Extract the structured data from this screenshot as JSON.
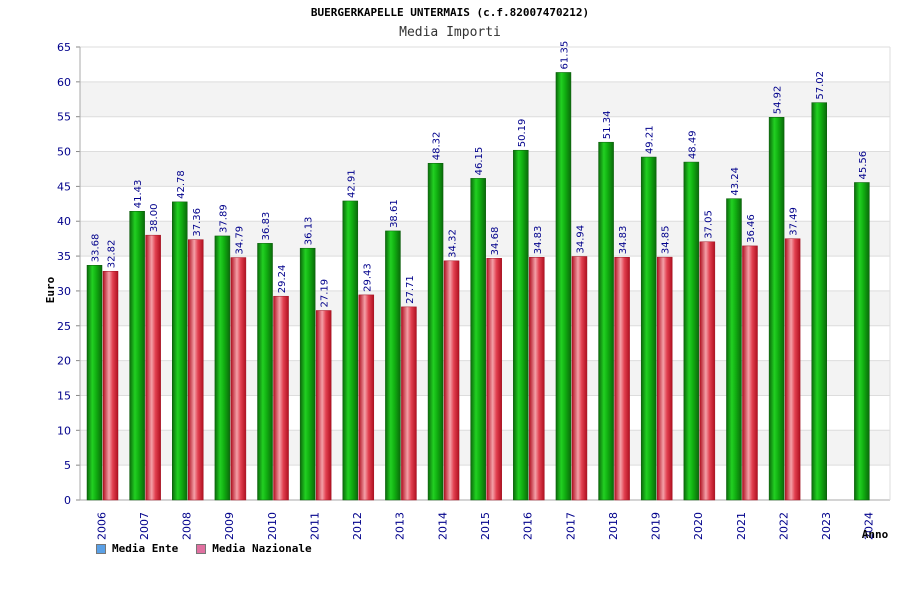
{
  "header": {
    "title": "BUERGERKAPELLE UNTERMAIS (c.f.82007470212)",
    "subtitle": "Media Importi"
  },
  "colors": {
    "ente": "#00a000",
    "nazionale": "#e03040",
    "legend_ente": "#5aa0e6",
    "legend_nazionale": "#e070a0",
    "band": "#f3f3f3",
    "grid": "#dddddd",
    "text": "#00008b"
  },
  "chart_data": {
    "type": "bar",
    "title": "Media Importi",
    "xlabel": "Anno",
    "ylabel": "Euro",
    "ylim": [
      0,
      65
    ],
    "yticks": [
      0,
      5,
      10,
      15,
      20,
      25,
      30,
      35,
      40,
      45,
      50,
      55,
      60,
      65
    ],
    "grid": true,
    "legend_position": "bottom-left",
    "categories": [
      "2006",
      "2007",
      "2008",
      "2009",
      "2010",
      "2011",
      "2012",
      "2013",
      "2014",
      "2015",
      "2016",
      "2017",
      "2018",
      "2019",
      "2020",
      "2021",
      "2022",
      "2023",
      "2024"
    ],
    "series": [
      {
        "name": "Media Ente",
        "values": [
          33.68,
          41.43,
          42.78,
          37.89,
          36.83,
          36.13,
          42.91,
          38.61,
          48.32,
          46.15,
          50.19,
          61.35,
          51.34,
          49.21,
          48.49,
          43.24,
          54.92,
          57.02,
          45.56
        ],
        "labels": [
          "33.68",
          "41.43",
          "42.78",
          "37.89",
          "36.83",
          "36.13",
          "42.91",
          "38.61",
          "48.32",
          "46.15",
          "50.19",
          "61.35",
          "51.34",
          "49.21",
          "48.49",
          "43.24",
          "54.92",
          "57.02",
          "45.56"
        ]
      },
      {
        "name": "Media Nazionale",
        "values": [
          32.82,
          38.0,
          37.36,
          34.79,
          29.24,
          27.19,
          29.43,
          27.71,
          34.32,
          34.68,
          34.83,
          34.94,
          34.83,
          34.85,
          37.05,
          36.46,
          37.49,
          null,
          null
        ],
        "labels": [
          "32.82",
          "38.00",
          "37.36",
          "34.79",
          "29.24",
          "27.19",
          "29.43",
          "27.71",
          "34.32",
          "34.68",
          "34.83",
          "34.94",
          "34.83",
          "34.85",
          "37.05",
          "36.46",
          "37.49",
          "",
          ""
        ]
      }
    ]
  }
}
